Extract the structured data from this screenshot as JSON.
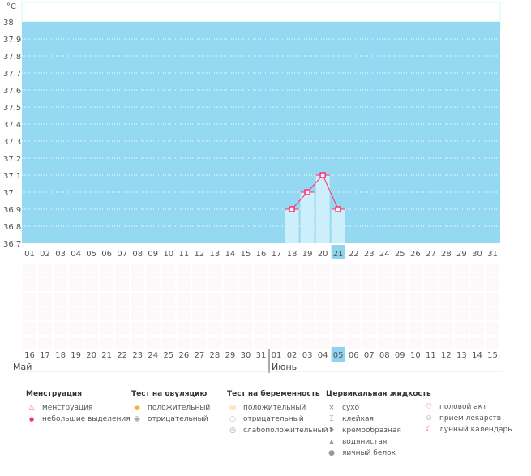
{
  "chart_data": {
    "type": "bar",
    "ylabel": "°C",
    "ylim": [
      36.7,
      38
    ],
    "yticks": [
      "36.7",
      "36.8",
      "36.9",
      "37",
      "37.1",
      "37.2",
      "37.3",
      "37.4",
      "37.5",
      "37.6",
      "37.7",
      "37.8",
      "37.9",
      "38"
    ],
    "categories": [
      "01",
      "02",
      "03",
      "04",
      "05",
      "06",
      "07",
      "08",
      "09",
      "10",
      "11",
      "12",
      "13",
      "14",
      "15",
      "16",
      "17",
      "18",
      "19",
      "20",
      "21",
      "22",
      "23",
      "24",
      "25",
      "26",
      "27",
      "28",
      "29",
      "30",
      "31"
    ],
    "series": [
      {
        "points": [
          {
            "x": "18",
            "y": 36.9
          },
          {
            "x": "19",
            "y": 37.0
          },
          {
            "x": "20",
            "y": 37.1
          },
          {
            "x": "21",
            "y": 36.9
          }
        ]
      }
    ],
    "highlight_cycle_day": "21",
    "calendar_dates": [
      "16",
      "17",
      "18",
      "19",
      "20",
      "21",
      "22",
      "23",
      "24",
      "25",
      "26",
      "27",
      "28",
      "29",
      "30",
      "31",
      "01",
      "02",
      "03",
      "04",
      "05",
      "06",
      "07",
      "08",
      "09",
      "10",
      "11",
      "12",
      "13",
      "14",
      "15"
    ],
    "weekend_dates": [
      1,
      2,
      8,
      9,
      15,
      16,
      22,
      23,
      29,
      30
    ],
    "highlight_date_index": 20,
    "grid": true,
    "colors": {
      "background": "#95d8f2",
      "bar": "#cdeefb",
      "line": "#ff2d6f",
      "weekend": "#ff2d6f",
      "highlight": "#8fd3ef"
    }
  },
  "months": {
    "first": "Май",
    "second": "Июнь"
  },
  "legend": {
    "menstruation": {
      "title": "Менструация",
      "items": [
        "менструация",
        "небольшие выделения"
      ]
    },
    "ovulation": {
      "title": "Тест на овуляцию",
      "items": [
        "положительный",
        "отрицательный"
      ]
    },
    "pregnancy": {
      "title": "Тест на беременность",
      "items": [
        "положительный",
        "отрицательный",
        "слабоположительный"
      ]
    },
    "cervical": {
      "title": "Цервикальная жидкость",
      "items": [
        "сухо",
        "клейкая",
        "кремообразная",
        "водянистая",
        "яичный белок"
      ]
    },
    "other": {
      "items": [
        "половой акт",
        "прием лекарств",
        "лунный календарь"
      ]
    }
  }
}
